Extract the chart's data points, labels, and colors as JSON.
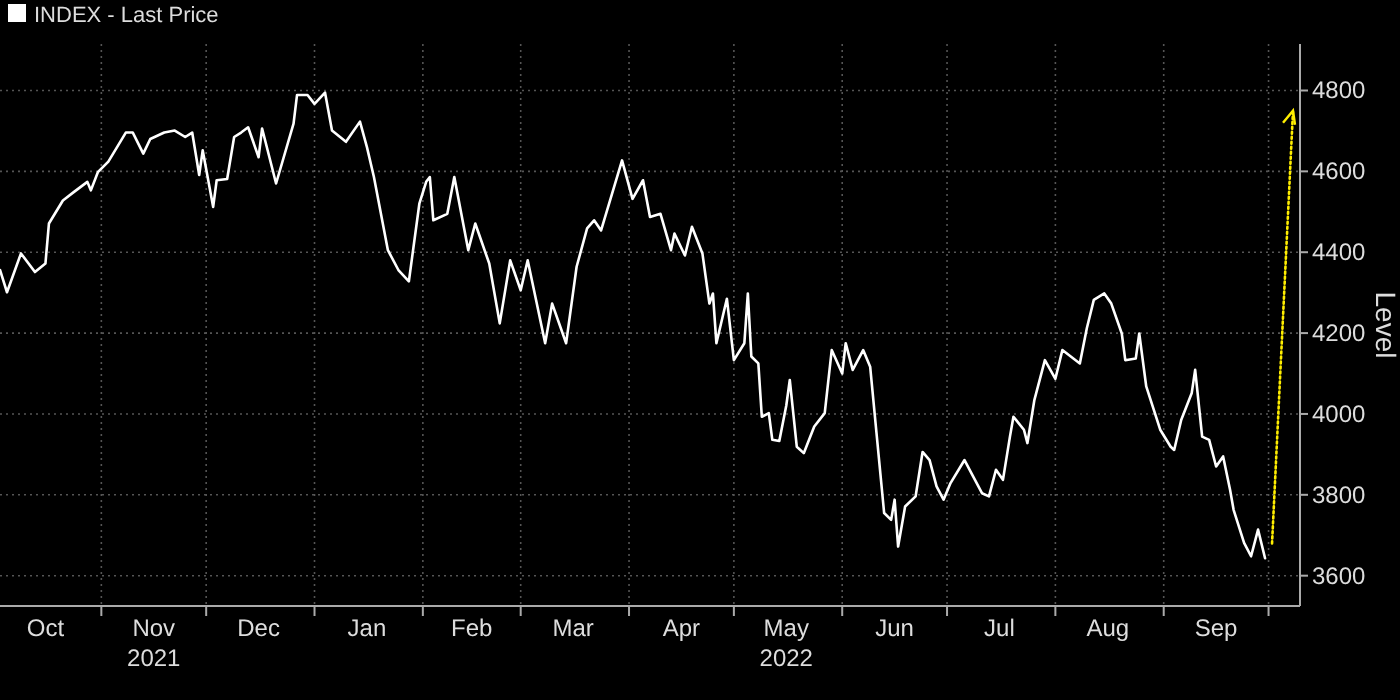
{
  "chart_data": {
    "type": "line",
    "ylabel": "Level",
    "legend": "top left",
    "grid": true,
    "line_style": "solid",
    "marker": "none",
    "xlim": [
      "2021-10-03",
      "2022-10-10"
    ],
    "ylim": [
      3525,
      4915
    ],
    "yticks": [
      3600,
      3800,
      4000,
      4200,
      4400,
      4600,
      4800
    ],
    "xticks": [
      {
        "value": "2021-10-16",
        "label": "Oct"
      },
      {
        "value": "2021-11-01",
        "label": null
      },
      {
        "value": "2021-11-16",
        "label": "Nov\n2021"
      },
      {
        "value": "2021-12-01",
        "label": null
      },
      {
        "value": "2021-12-16",
        "label": "Dec"
      },
      {
        "value": "2022-01-01",
        "label": null
      },
      {
        "value": "2022-01-16",
        "label": "Jan"
      },
      {
        "value": "2022-02-01",
        "label": null
      },
      {
        "value": "2022-02-15",
        "label": "Feb"
      },
      {
        "value": "2022-03-01",
        "label": null
      },
      {
        "value": "2022-03-16",
        "label": "Mar"
      },
      {
        "value": "2022-04-01",
        "label": null
      },
      {
        "value": "2022-04-16",
        "label": "Apr"
      },
      {
        "value": "2022-05-01",
        "label": null
      },
      {
        "value": "2022-05-16",
        "label": "May\n2022"
      },
      {
        "value": "2022-06-01",
        "label": null
      },
      {
        "value": "2022-06-16",
        "label": "Jun"
      },
      {
        "value": "2022-07-01",
        "label": null
      },
      {
        "value": "2022-07-16",
        "label": "Jul"
      },
      {
        "value": "2022-08-01",
        "label": null
      },
      {
        "value": "2022-08-16",
        "label": "Aug"
      },
      {
        "value": "2022-09-01",
        "label": null
      },
      {
        "value": "2022-09-16",
        "label": "Sep"
      },
      {
        "value": "2022-10-01",
        "label": null
      }
    ],
    "x": [
      "2021-10-03",
      "2021-10-05",
      "2021-10-09",
      "2021-10-13",
      "2021-10-16",
      "2021-10-17",
      "2021-10-21",
      "2021-10-24",
      "2021-10-28",
      "2021-10-29",
      "2021-10-31",
      "2021-11-03",
      "2021-11-08",
      "2021-11-10",
      "2021-11-13",
      "2021-11-15",
      "2021-11-19",
      "2021-11-22",
      "2021-11-25",
      "2021-11-27",
      "2021-11-29",
      "2021-11-30",
      "2021-12-03",
      "2021-12-04",
      "2021-12-07",
      "2021-12-09",
      "2021-12-11",
      "2021-12-13",
      "2021-12-16",
      "2021-12-17",
      "2021-12-21",
      "2021-12-26",
      "2021-12-27",
      "2021-12-30",
      "2022-01-01",
      "2022-01-04",
      "2022-01-06",
      "2022-01-10",
      "2022-01-14",
      "2022-01-16",
      "2022-01-18",
      "2022-01-22",
      "2022-01-25",
      "2022-01-28",
      "2022-01-31",
      "2022-02-02",
      "2022-02-03",
      "2022-02-04",
      "2022-02-08",
      "2022-02-10",
      "2022-02-14",
      "2022-02-16",
      "2022-02-20",
      "2022-02-23",
      "2022-02-26",
      "2022-03-01",
      "2022-03-03",
      "2022-03-08",
      "2022-03-10",
      "2022-03-14",
      "2022-03-17",
      "2022-03-20",
      "2022-03-22",
      "2022-03-24",
      "2022-03-30",
      "2022-04-02",
      "2022-04-05",
      "2022-04-07",
      "2022-04-10",
      "2022-04-13",
      "2022-04-14",
      "2022-04-17",
      "2022-04-19",
      "2022-04-22",
      "2022-04-24",
      "2022-04-25",
      "2022-04-26",
      "2022-04-29",
      "2022-05-01",
      "2022-05-04",
      "2022-05-05",
      "2022-05-06",
      "2022-05-08",
      "2022-05-09",
      "2022-05-11",
      "2022-05-12",
      "2022-05-14",
      "2022-05-16",
      "2022-05-17",
      "2022-05-19",
      "2022-05-21",
      "2022-05-24",
      "2022-05-27",
      "2022-05-29",
      "2022-06-01",
      "2022-06-02",
      "2022-06-04",
      "2022-06-07",
      "2022-06-09",
      "2022-06-11",
      "2022-06-13",
      "2022-06-15",
      "2022-06-16",
      "2022-06-17",
      "2022-06-19",
      "2022-06-22",
      "2022-06-24",
      "2022-06-26",
      "2022-06-28",
      "2022-06-30",
      "2022-07-02",
      "2022-07-06",
      "2022-07-08",
      "2022-07-11",
      "2022-07-13",
      "2022-07-15",
      "2022-07-17",
      "2022-07-19",
      "2022-07-20",
      "2022-07-23",
      "2022-07-24",
      "2022-07-26",
      "2022-07-29",
      "2022-08-01",
      "2022-08-03",
      "2022-08-08",
      "2022-08-10",
      "2022-08-12",
      "2022-08-15",
      "2022-08-17",
      "2022-08-20",
      "2022-08-21",
      "2022-08-24",
      "2022-08-25",
      "2022-08-27",
      "2022-08-31",
      "2022-09-03",
      "2022-09-04",
      "2022-09-06",
      "2022-09-09",
      "2022-09-10",
      "2022-09-12",
      "2022-09-14",
      "2022-09-16",
      "2022-09-18",
      "2022-09-20",
      "2022-09-21",
      "2022-09-24",
      "2022-09-26",
      "2022-09-28",
      "2022-09-30"
    ],
    "series": [
      {
        "name": "INDEX - Last Price",
        "color": "#ffffff",
        "values": [
          4356,
          4301,
          4397,
          4351,
          4372,
          4471,
          4528,
          4548,
          4574,
          4553,
          4598,
          4624,
          4696,
          4696,
          4644,
          4680,
          4696,
          4701,
          4685,
          4696,
          4591,
          4652,
          4512,
          4578,
          4581,
          4685,
          4696,
          4709,
          4635,
          4706,
          4570,
          4718,
          4789,
          4789,
          4767,
          4795,
          4701,
          4673,
          4723,
          4660,
          4586,
          4405,
          4356,
          4328,
          4520,
          4575,
          4586,
          4479,
          4495,
          4586,
          4405,
          4471,
          4372,
          4224,
          4380,
          4306,
          4380,
          4175,
          4273,
          4175,
          4364,
          4459,
          4479,
          4454,
          4627,
          4532,
          4578,
          4487,
          4495,
          4405,
          4446,
          4392,
          4463,
          4397,
          4273,
          4298,
          4175,
          4285,
          4133,
          4175,
          4298,
          4142,
          4125,
          3993,
          4002,
          3936,
          3933,
          4021,
          4084,
          3919,
          3903,
          3969,
          4002,
          4158,
          4100,
          4175,
          4109,
          4158,
          4117,
          3936,
          3755,
          3738,
          3788,
          3672,
          3771,
          3796,
          3906,
          3886,
          3821,
          3788,
          3829,
          3886,
          3853,
          3804,
          3796,
          3862,
          3837,
          3944,
          3993,
          3961,
          3928,
          4035,
          4133,
          4087,
          4158,
          4125,
          4212,
          4282,
          4298,
          4273,
          4199,
          4133,
          4137,
          4199,
          4068,
          3961,
          3919,
          3911,
          3985,
          4051,
          4109,
          3944,
          3936,
          3870,
          3895,
          3812,
          3763,
          3681,
          3648,
          3714,
          3643
        ]
      },
      {
        "type": "line",
        "color": "#ffee00",
        "line_style": "dotted",
        "x": [
          "2022-10-02",
          "2022-10-08"
        ],
        "values": [
          3680,
          4750
        ]
      }
    ]
  }
}
